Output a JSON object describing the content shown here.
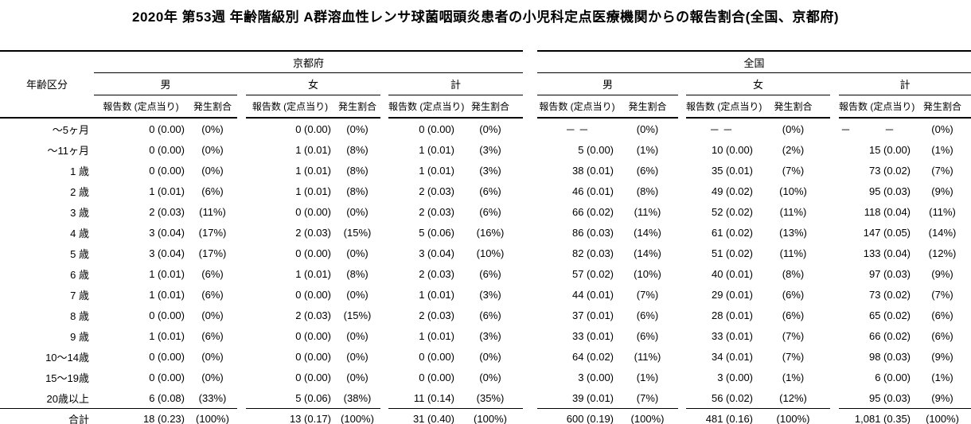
{
  "title": "2020年 第53週 年齢階級別 А群溶血性レンサ球菌咽頭炎患者の小児科定点医療機関からの報告割合(全国、京都府)",
  "table": {
    "age_header": "年齢区分",
    "regions": [
      "京都府",
      "全国"
    ],
    "genders": [
      "男",
      "女",
      "計"
    ],
    "reports_label": "報告数 (定点当り)",
    "ratio_label": "発生割合",
    "rows": [
      {
        "label": "～5ヶ月",
        "cells": [
          "0 (0.00)",
          "(0%)",
          "0 (0.00)",
          "(0%)",
          "0 (0.00)",
          "(0%)",
          "－ －",
          "(0%)",
          "－ －",
          "(0%)",
          [
            "－",
            "－"
          ],
          "(0%)"
        ]
      },
      {
        "label": "～11ヶ月",
        "cells": [
          "0 (0.00)",
          "(0%)",
          "1 (0.01)",
          "(8%)",
          "1 (0.01)",
          "(3%)",
          "5 (0.00)",
          "(1%)",
          "10 (0.00)",
          "(2%)",
          "15 (0.00)",
          "(1%)"
        ]
      },
      {
        "label": "1 歳",
        "cells": [
          "0 (0.00)",
          "(0%)",
          "1 (0.01)",
          "(8%)",
          "1 (0.01)",
          "(3%)",
          "38 (0.01)",
          "(6%)",
          "35 (0.01)",
          "(7%)",
          "73 (0.02)",
          "(7%)"
        ]
      },
      {
        "label": "2 歳",
        "cells": [
          "1 (0.01)",
          "(6%)",
          "1 (0.01)",
          "(8%)",
          "2 (0.03)",
          "(6%)",
          "46 (0.01)",
          "(8%)",
          "49 (0.02)",
          "(10%)",
          "95 (0.03)",
          "(9%)"
        ]
      },
      {
        "label": "3 歳",
        "cells": [
          "2 (0.03)",
          "(11%)",
          "0 (0.00)",
          "(0%)",
          "2 (0.03)",
          "(6%)",
          "66 (0.02)",
          "(11%)",
          "52 (0.02)",
          "(11%)",
          "118 (0.04)",
          "(11%)"
        ]
      },
      {
        "label": "4 歳",
        "cells": [
          "3 (0.04)",
          "(17%)",
          "2 (0.03)",
          "(15%)",
          "5 (0.06)",
          "(16%)",
          "86 (0.03)",
          "(14%)",
          "61 (0.02)",
          "(13%)",
          "147 (0.05)",
          "(14%)"
        ]
      },
      {
        "label": "5 歳",
        "cells": [
          "3 (0.04)",
          "(17%)",
          "0 (0.00)",
          "(0%)",
          "3 (0.04)",
          "(10%)",
          "82 (0.03)",
          "(14%)",
          "51 (0.02)",
          "(11%)",
          "133 (0.04)",
          "(12%)"
        ]
      },
      {
        "label": "6 歳",
        "cells": [
          "1 (0.01)",
          "(6%)",
          "1 (0.01)",
          "(8%)",
          "2 (0.03)",
          "(6%)",
          "57 (0.02)",
          "(10%)",
          "40 (0.01)",
          "(8%)",
          "97 (0.03)",
          "(9%)"
        ]
      },
      {
        "label": "7 歳",
        "cells": [
          "1 (0.01)",
          "(6%)",
          "0 (0.00)",
          "(0%)",
          "1 (0.01)",
          "(3%)",
          "44 (0.01)",
          "(7%)",
          "29 (0.01)",
          "(6%)",
          "73 (0.02)",
          "(7%)"
        ]
      },
      {
        "label": "8 歳",
        "cells": [
          "0 (0.00)",
          "(0%)",
          "2 (0.03)",
          "(15%)",
          "2 (0.03)",
          "(6%)",
          "37 (0.01)",
          "(6%)",
          "28 (0.01)",
          "(6%)",
          "65 (0.02)",
          "(6%)"
        ]
      },
      {
        "label": "9 歳",
        "cells": [
          "1 (0.01)",
          "(6%)",
          "0 (0.00)",
          "(0%)",
          "1 (0.01)",
          "(3%)",
          "33 (0.01)",
          "(6%)",
          "33 (0.01)",
          "(7%)",
          "66 (0.02)",
          "(6%)"
        ]
      },
      {
        "label": "10～14歳",
        "cells": [
          "0 (0.00)",
          "(0%)",
          "0 (0.00)",
          "(0%)",
          "0 (0.00)",
          "(0%)",
          "64 (0.02)",
          "(11%)",
          "34 (0.01)",
          "(7%)",
          "98 (0.03)",
          "(9%)"
        ]
      },
      {
        "label": "15～19歳",
        "cells": [
          "0 (0.00)",
          "(0%)",
          "0 (0.00)",
          "(0%)",
          "0 (0.00)",
          "(0%)",
          "3 (0.00)",
          "(1%)",
          "3 (0.00)",
          "(1%)",
          "6 (0.00)",
          "(1%)"
        ]
      },
      {
        "label": "20歳以上",
        "cells": [
          "6 (0.08)",
          "(33%)",
          "5 (0.06)",
          "(38%)",
          "11 (0.14)",
          "(35%)",
          "39 (0.01)",
          "(7%)",
          "56 (0.02)",
          "(12%)",
          "95 (0.03)",
          "(9%)"
        ]
      }
    ],
    "total": {
      "label": "合計",
      "cells": [
        "18 (0.23)",
        "(100%)",
        "13 (0.17)",
        "(100%)",
        "31 (0.40)",
        "(100%)",
        "600 (0.19)",
        "(100%)",
        "481 (0.16)",
        "(100%)",
        "1,081 (0.35)",
        "(100%)"
      ]
    }
  }
}
